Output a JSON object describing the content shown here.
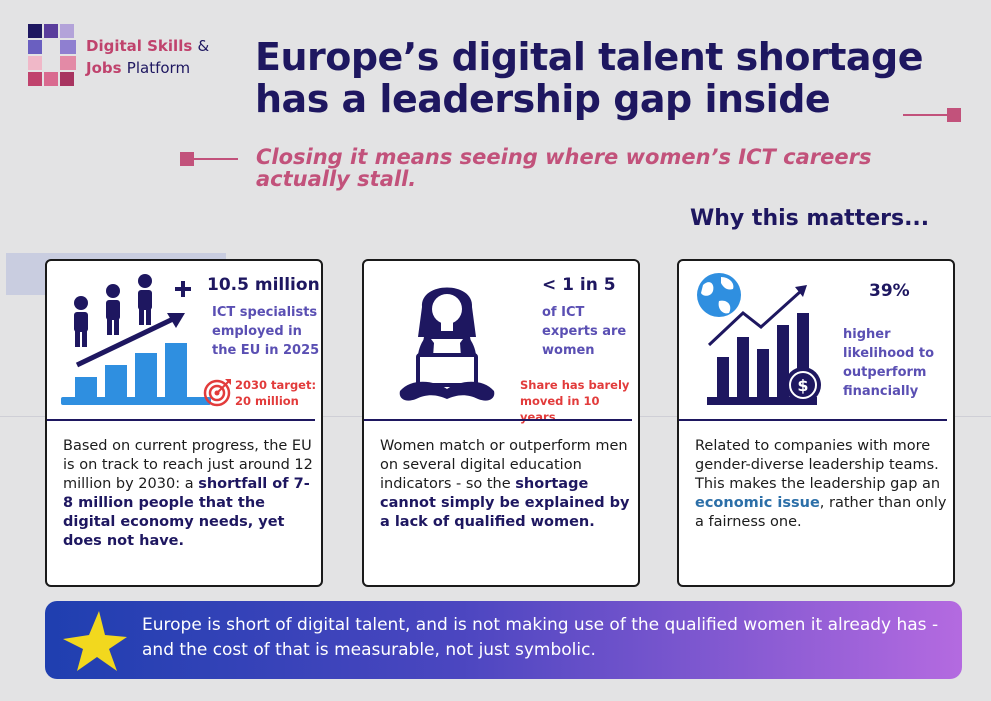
{
  "logo": {
    "line1_bold": "Digital Skills",
    "line1_light": "&",
    "line2_bold": "Jobs",
    "line2_light": "Platform"
  },
  "title": {
    "line1": "Europe’s digital talent shortage",
    "line2": "has a leadership gap inside"
  },
  "subtitle": {
    "line1": "Closing it means seeing where women’s ICT careers",
    "line2": "actually stall."
  },
  "why_heading": "Why this matters...",
  "cards": [
    {
      "stat": "10.5 million",
      "desc": [
        "ICT specialists",
        "employed in",
        "the EU in 2025"
      ],
      "note": [
        "2030 target:",
        "20 million"
      ],
      "body_plain": "Based on current progress, the EU is on track to reach just around 12 million by 2030: a ",
      "body_bold": "shortfall of 7-8 million people that the digital economy needs, yet does not have."
    },
    {
      "stat": "< 1 in 5",
      "desc": [
        "of ICT",
        "experts are",
        "women"
      ],
      "note": [
        "Share has barely",
        "moved in 10 years"
      ],
      "body_plain": "Women match or outperform men on several digital education indicators - so the ",
      "body_bold": "shortage cannot simply be explained by a lack of qualified women."
    },
    {
      "stat": "39%",
      "desc": [
        "higher",
        "likelihood to",
        "outperform",
        "financially"
      ],
      "body_plain1": "Related to companies with more gender-diverse leadership teams. This makes the leadership gap an ",
      "body_bold": "economic issue",
      "body_plain2": ", rather than only a fairness one."
    }
  ],
  "banner": {
    "text": "Europe is short of digital talent, and is not making use of the qualified women it already has - and the cost of that is measurable, not just symbolic."
  },
  "colors": {
    "navy": "#1e1760",
    "pink": "#c2527b",
    "accent_blue": "#2c6fa8",
    "icon_blue": "#2f8fe0",
    "red_note": "#e23b3b"
  }
}
